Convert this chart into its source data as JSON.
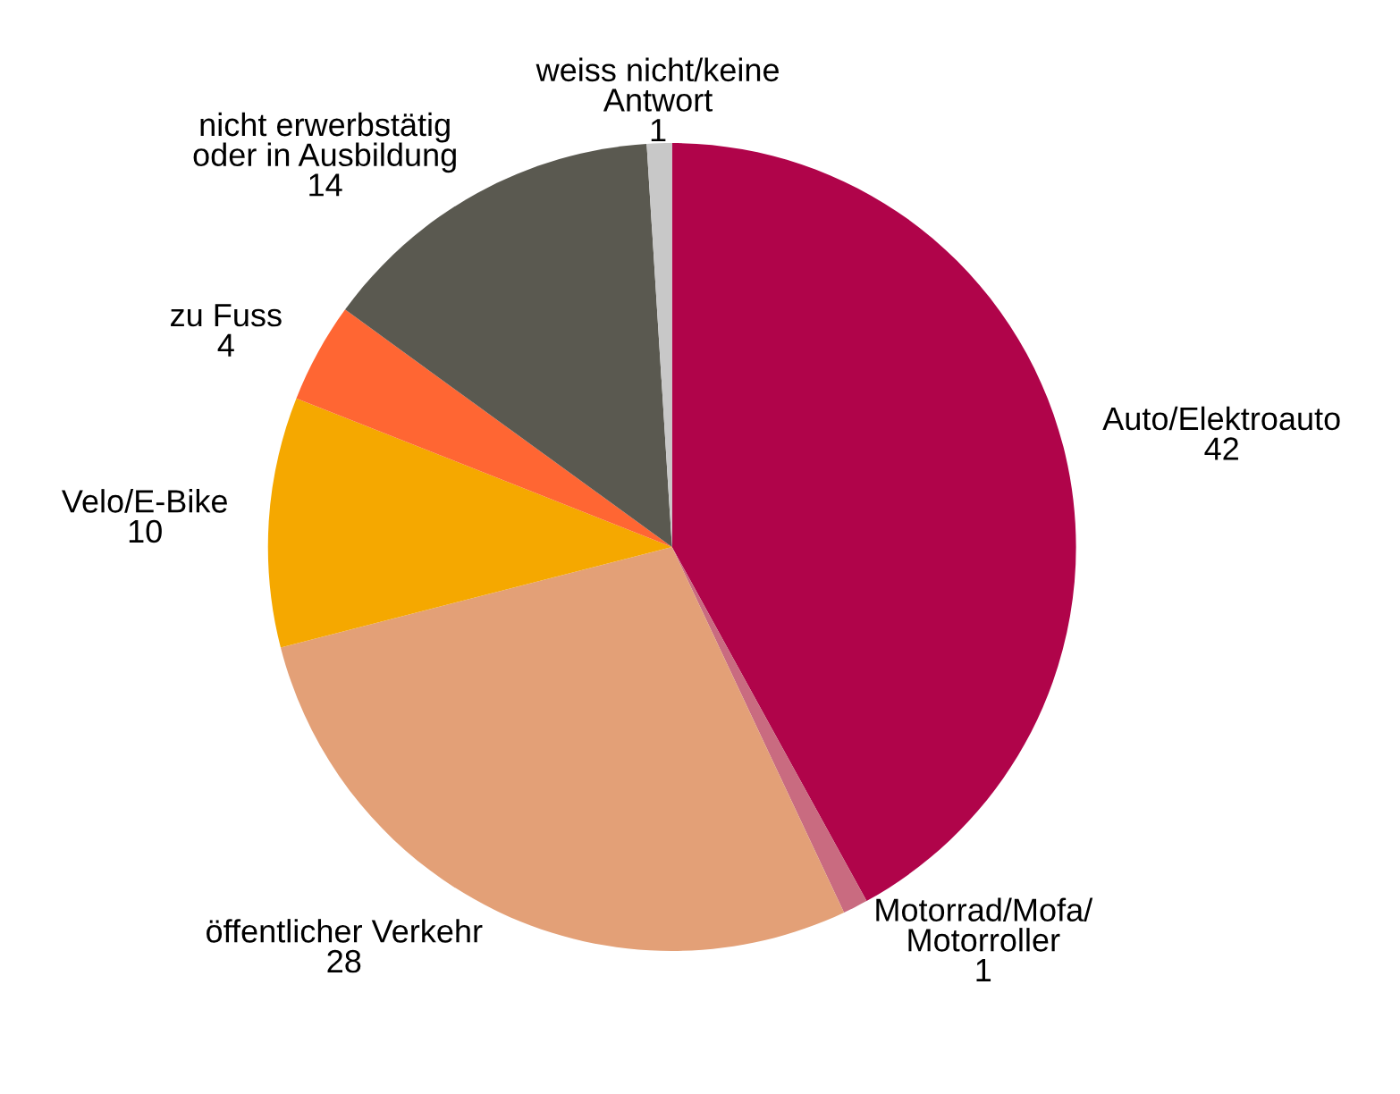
{
  "chart_data": {
    "type": "pie",
    "categories": [
      "Auto/Elektroauto",
      "Motorrad/Mofa/\nMotorroller",
      "öffentlicher Verkehr",
      "Velo/E-Bike",
      "zu Fuss",
      "nicht erwerbstätig\noder in Ausbildung",
      "weiss nicht/keine\nAntwort"
    ],
    "values": [
      42,
      1,
      28,
      10,
      4,
      14,
      1
    ],
    "colors": [
      "#b0044a",
      "#c96b80",
      "#e3a077",
      "#f5a800",
      "#ff6633",
      "#5a5950",
      "#c8c8c8"
    ],
    "data_labels": true,
    "legend": false
  }
}
